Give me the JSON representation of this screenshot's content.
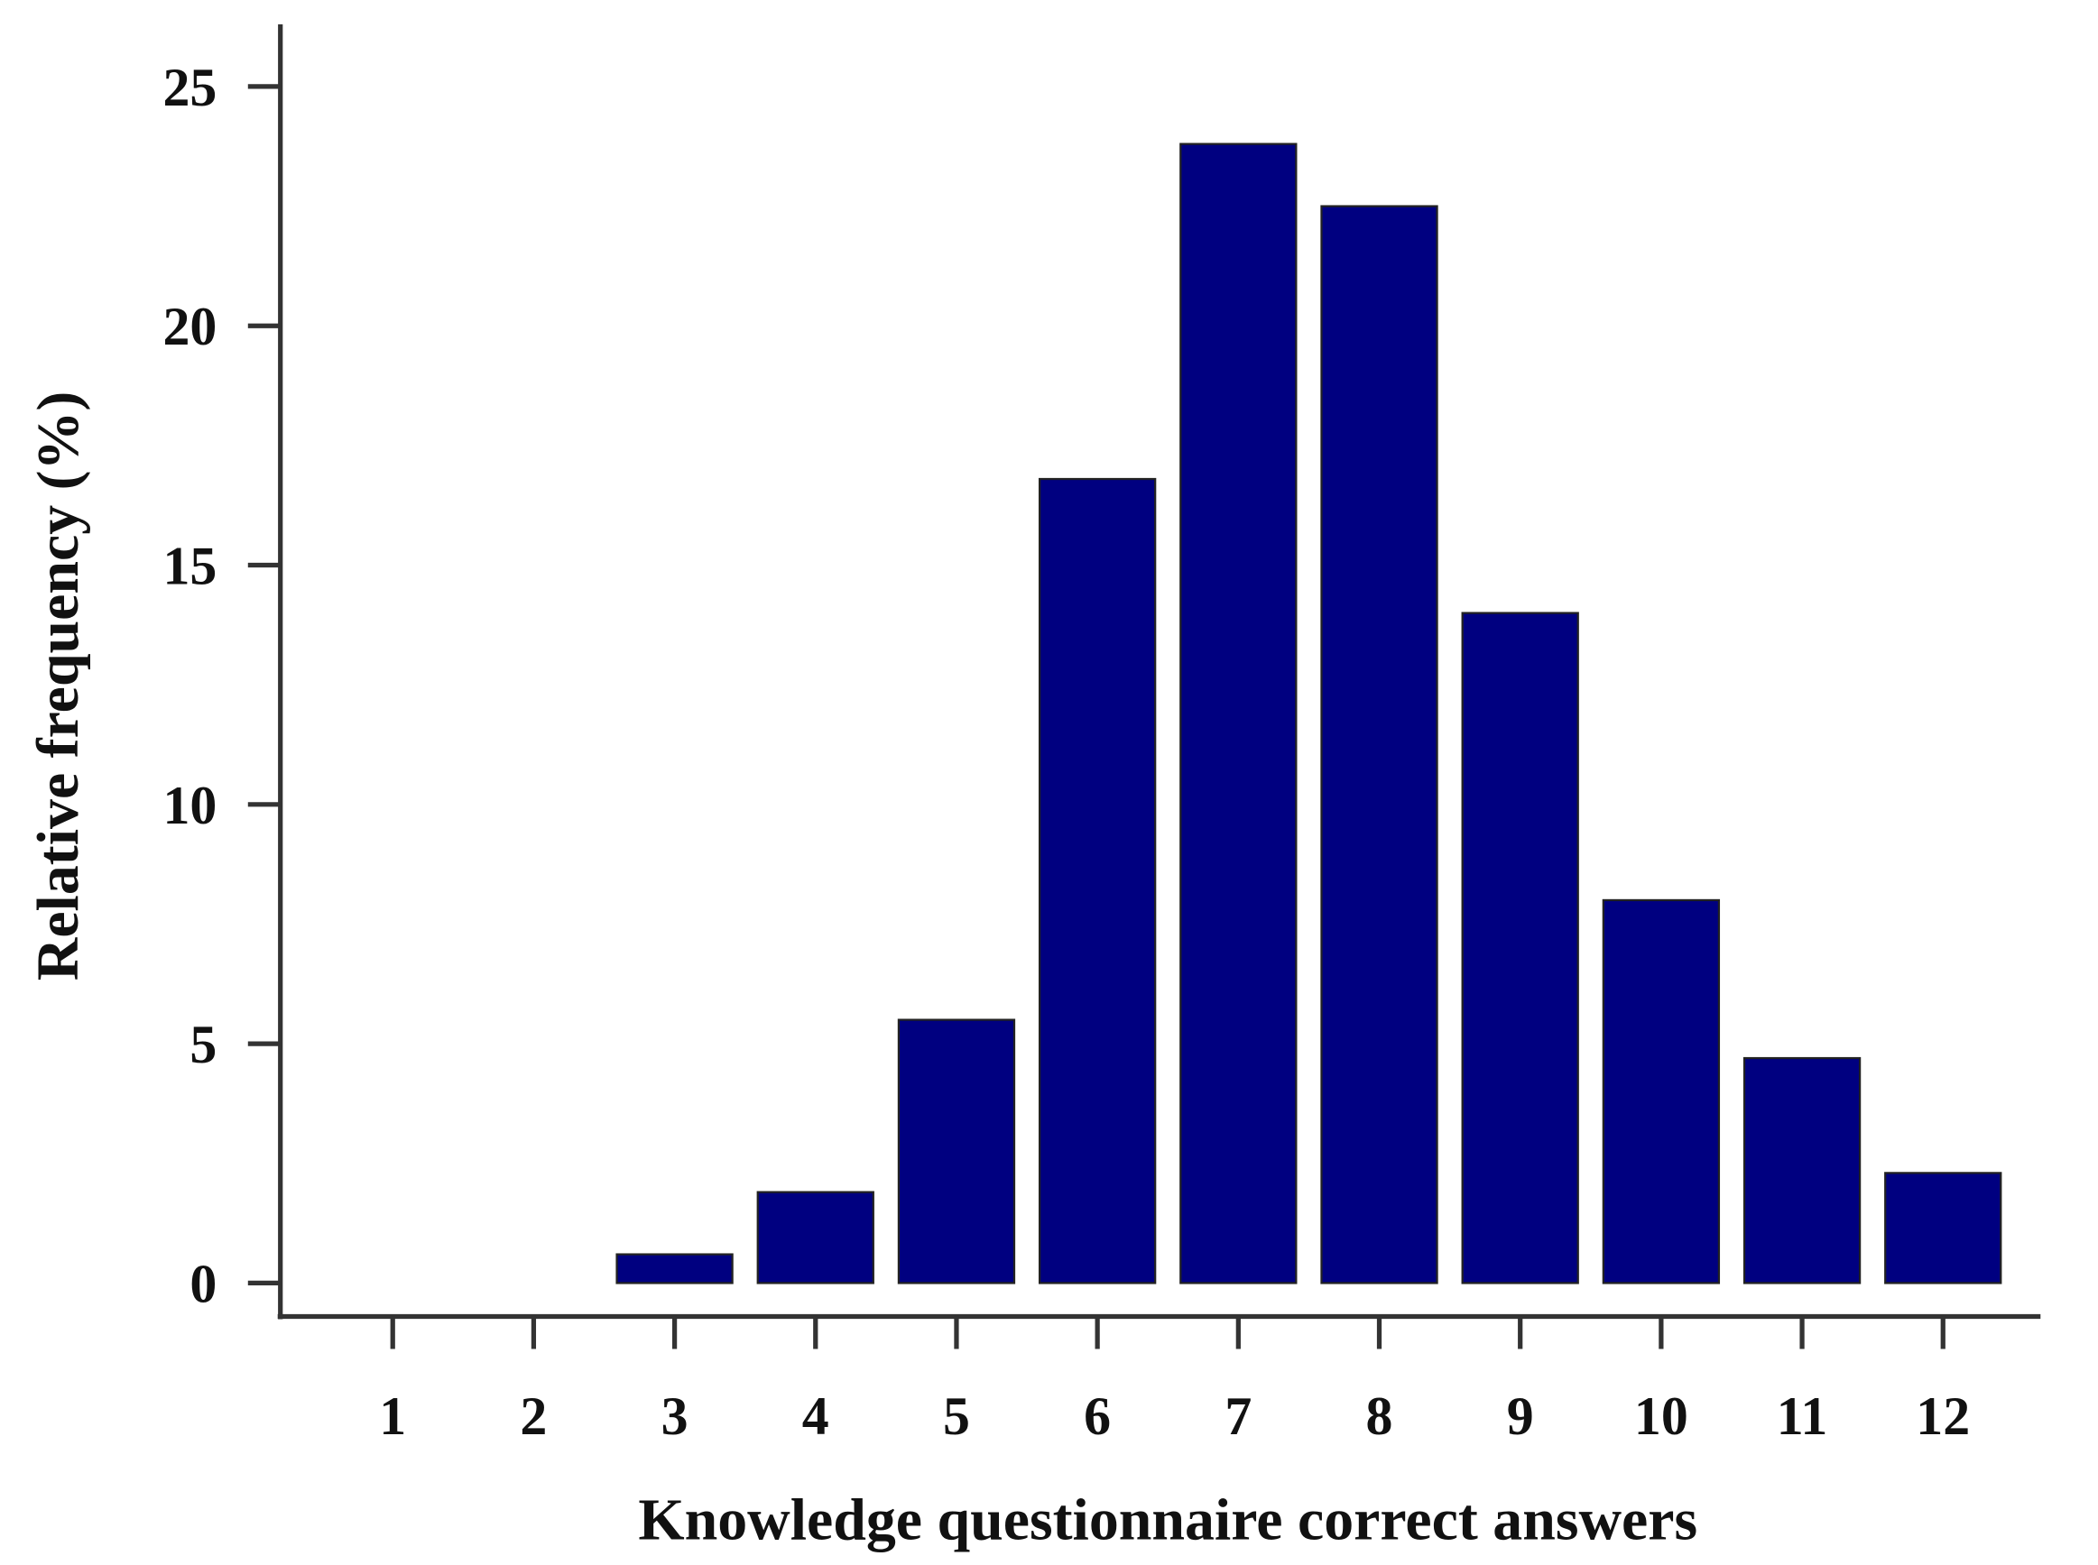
{
  "chart_data": {
    "type": "bar",
    "x_label": "Knowledge questionnaire correct answers",
    "y_label": "Relative frequency (%)",
    "categories": [
      "1",
      "2",
      "3",
      "4",
      "5",
      "6",
      "7",
      "8",
      "9",
      "10",
      "11",
      "12"
    ],
    "values": [
      0,
      0,
      0.6,
      1.9,
      5.5,
      16.8,
      23.8,
      22.5,
      14.0,
      8.0,
      4.7,
      2.3
    ],
    "color": "#000080",
    "ylim": [
      -0.7,
      26.3
    ],
    "yticks": [
      0,
      5,
      10,
      15,
      20,
      25
    ],
    "grid": false
  }
}
